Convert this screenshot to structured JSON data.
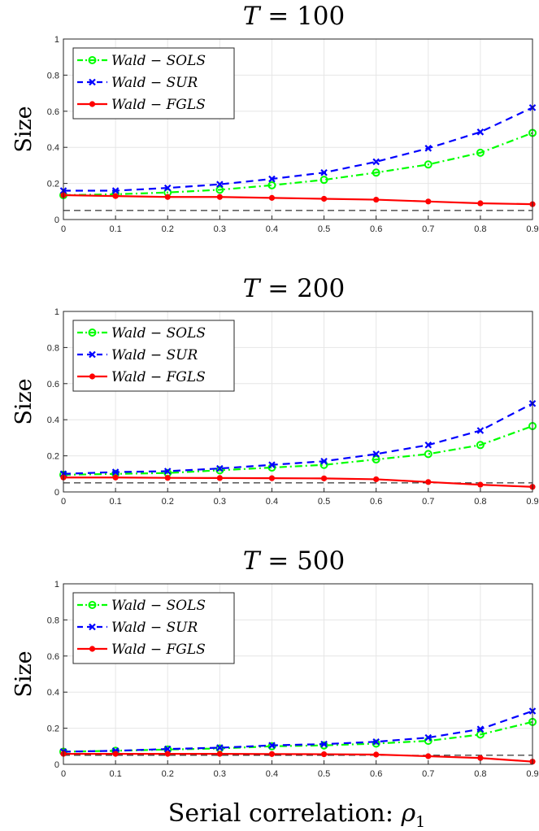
{
  "colors": {
    "sols": "#00ff00",
    "sur": "#0000ff",
    "fgls": "#ff0000",
    "reference": "#000000",
    "grid": "#e6e6e6"
  },
  "xlabel": "Serial correlation: ",
  "xlabel_symbol": "ρ",
  "xlabel_subscript": "1",
  "chart_data": [
    {
      "type": "line",
      "title_var": "T",
      "title_rest": " = 100",
      "ylabel": "Size",
      "xlim": [
        0,
        0.9
      ],
      "ylim": [
        0,
        1
      ],
      "grid": true,
      "legend_position": "top-left",
      "x": [
        0,
        0.1,
        0.2,
        0.3,
        0.4,
        0.5,
        0.6,
        0.7,
        0.8,
        0.9
      ],
      "x_tick_labels": [
        "0",
        "0.1",
        "0.2",
        "0.3",
        "0.4",
        "0.5",
        "0.6",
        "0.7",
        "0.8",
        "0.9"
      ],
      "y_ticks": [
        0,
        0.2,
        0.4,
        0.6,
        0.8,
        1
      ],
      "y_tick_labels": [
        "0",
        "0.2",
        "0.4",
        "0.6",
        "0.8",
        "1"
      ],
      "reference_level": 0.05,
      "series": [
        {
          "name": "Wald − SOLS",
          "color": "#00ff00",
          "style": "dashdot",
          "marker": "circle",
          "values": [
            0.135,
            0.14,
            0.15,
            0.165,
            0.19,
            0.22,
            0.26,
            0.305,
            0.37,
            0.48
          ]
        },
        {
          "name": "Wald − SUR",
          "color": "#0000ff",
          "style": "dashed",
          "marker": "cross",
          "values": [
            0.16,
            0.16,
            0.175,
            0.195,
            0.225,
            0.26,
            0.32,
            0.395,
            0.485,
            0.62
          ]
        },
        {
          "name": "Wald − FGLS",
          "color": "#ff0000",
          "style": "solid",
          "marker": "dot",
          "values": [
            0.135,
            0.13,
            0.125,
            0.125,
            0.12,
            0.115,
            0.11,
            0.1,
            0.09,
            0.085
          ]
        }
      ]
    },
    {
      "type": "line",
      "title_var": "T",
      "title_rest": " = 200",
      "ylabel": "Size",
      "xlim": [
        0,
        0.9
      ],
      "ylim": [
        0,
        1
      ],
      "grid": true,
      "legend_position": "top-left",
      "x": [
        0,
        0.1,
        0.2,
        0.3,
        0.4,
        0.5,
        0.6,
        0.7,
        0.8,
        0.9
      ],
      "x_tick_labels": [
        "0",
        "0.1",
        "0.2",
        "0.3",
        "0.4",
        "0.5",
        "0.6",
        "0.7",
        "0.8",
        "0.9"
      ],
      "y_ticks": [
        0,
        0.2,
        0.4,
        0.6,
        0.8,
        1
      ],
      "y_tick_labels": [
        "0",
        "0.2",
        "0.4",
        "0.6",
        "0.8",
        "1"
      ],
      "reference_level": 0.05,
      "series": [
        {
          "name": "Wald − SOLS",
          "color": "#00ff00",
          "style": "dashdot",
          "marker": "circle",
          "values": [
            0.095,
            0.1,
            0.105,
            0.12,
            0.135,
            0.15,
            0.18,
            0.21,
            0.26,
            0.365
          ]
        },
        {
          "name": "Wald − SUR",
          "color": "#0000ff",
          "style": "dashed",
          "marker": "cross",
          "values": [
            0.1,
            0.11,
            0.115,
            0.13,
            0.15,
            0.17,
            0.21,
            0.26,
            0.34,
            0.49
          ]
        },
        {
          "name": "Wald − FGLS",
          "color": "#ff0000",
          "style": "solid",
          "marker": "dot",
          "values": [
            0.08,
            0.08,
            0.078,
            0.077,
            0.076,
            0.075,
            0.07,
            0.055,
            0.04,
            0.028
          ]
        }
      ]
    },
    {
      "type": "line",
      "title_var": "T",
      "title_rest": " = 500",
      "ylabel": "Size",
      "xlim": [
        0,
        0.9
      ],
      "ylim": [
        0,
        1
      ],
      "grid": true,
      "legend_position": "top-left",
      "x": [
        0,
        0.1,
        0.2,
        0.3,
        0.4,
        0.5,
        0.6,
        0.7,
        0.8,
        0.9
      ],
      "x_tick_labels": [
        "0",
        "0.1",
        "0.2",
        "0.3",
        "0.4",
        "0.5",
        "0.6",
        "0.7",
        "0.8",
        "0.9"
      ],
      "y_ticks": [
        0,
        0.2,
        0.4,
        0.6,
        0.8,
        1
      ],
      "y_tick_labels": [
        "0",
        "0.2",
        "0.4",
        "0.6",
        "0.8",
        "1"
      ],
      "reference_level": 0.05,
      "series": [
        {
          "name": "Wald − SOLS",
          "color": "#00ff00",
          "style": "dashdot",
          "marker": "circle",
          "values": [
            0.07,
            0.075,
            0.082,
            0.088,
            0.1,
            0.105,
            0.115,
            0.13,
            0.165,
            0.235
          ]
        },
        {
          "name": "Wald − SUR",
          "color": "#0000ff",
          "style": "dashed",
          "marker": "cross",
          "values": [
            0.07,
            0.075,
            0.085,
            0.092,
            0.105,
            0.112,
            0.125,
            0.148,
            0.195,
            0.295
          ]
        },
        {
          "name": "Wald − FGLS",
          "color": "#ff0000",
          "style": "solid",
          "marker": "dot",
          "values": [
            0.058,
            0.058,
            0.058,
            0.058,
            0.057,
            0.056,
            0.054,
            0.045,
            0.035,
            0.015
          ]
        }
      ]
    }
  ]
}
